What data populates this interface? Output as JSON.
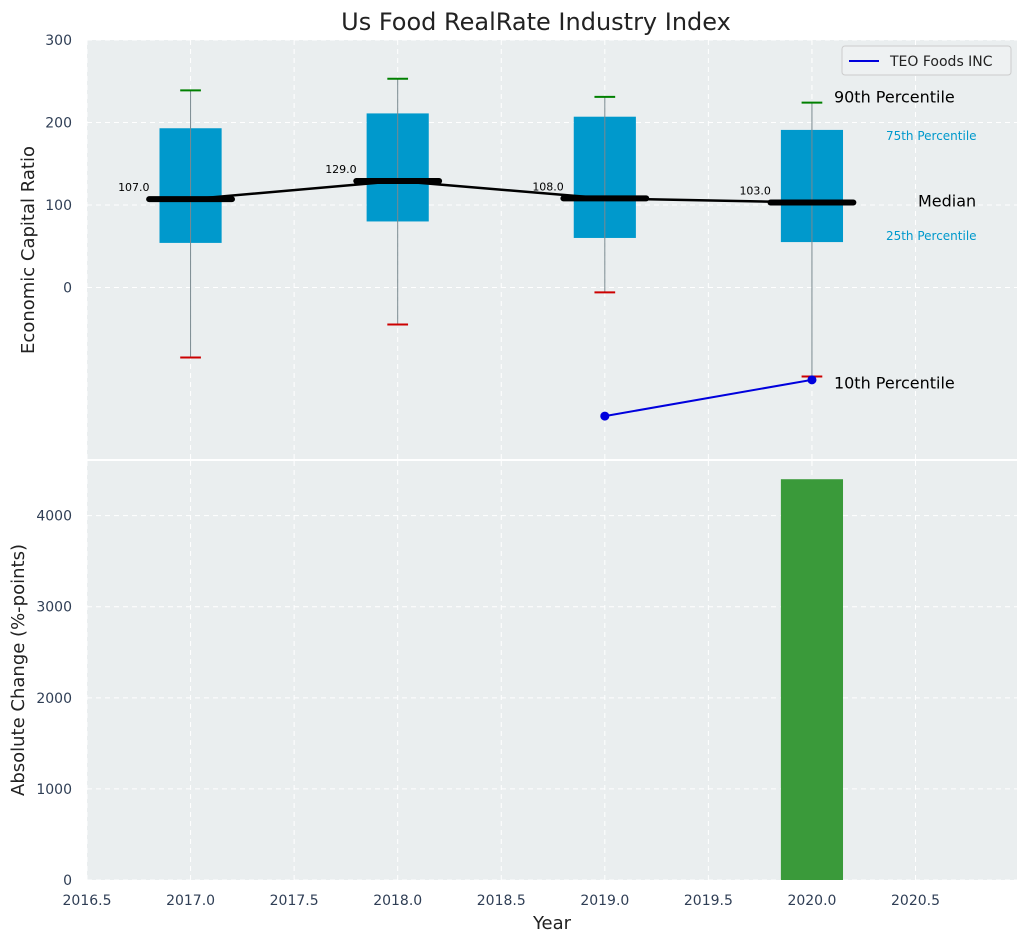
{
  "chart_data": {
    "title": "Us Food RealRate Industry Index",
    "xlabel": "Year",
    "x_ticks": [
      "2016.5",
      "2017.0",
      "2017.5",
      "2018.0",
      "2018.5",
      "2019.0",
      "2019.5",
      "2020.0",
      "2020.5"
    ],
    "x_tick_values": [
      2016.5,
      2017.0,
      2017.5,
      2018.0,
      2018.5,
      2019.0,
      2019.5,
      2020.0,
      2020.5
    ],
    "xlim": [
      2016.5,
      2020.99
    ],
    "colors": {
      "box": "#0099cc",
      "median": "#000000",
      "whisker_top": "#008000",
      "whisker_bottom": "#cc0000",
      "company": "#0000dd",
      "bar": "#3a9a3a",
      "plot_bg": "#eaeeef"
    },
    "panels": [
      {
        "type": "box",
        "ylabel": "Economic Capital Ratio",
        "ylim": [
          -208,
          300
        ],
        "y_ticks": [
          "300",
          "200",
          "100",
          "0"
        ],
        "y_tick_values": [
          300,
          200,
          100,
          0
        ],
        "boxes": [
          {
            "year": 2017,
            "p10": -85,
            "p25": 54,
            "median": 107,
            "p75": 193,
            "p90": 239,
            "label": "107.0"
          },
          {
            "year": 2018,
            "p10": -45,
            "p25": 80,
            "median": 129,
            "p75": 211,
            "p90": 253,
            "label": "129.0"
          },
          {
            "year": 2019,
            "p10": -6,
            "p25": 60,
            "median": 108,
            "p75": 207,
            "p90": 231,
            "label": "108.0"
          },
          {
            "year": 2020,
            "p10": -108,
            "p25": 55,
            "median": 103,
            "p75": 191,
            "p90": 224,
            "label": "103.0"
          }
        ],
        "company_series": {
          "name": "TEO Foods INC",
          "points": [
            {
              "x": 2019,
              "y": -156
            },
            {
              "x": 2020,
              "y": -112
            }
          ]
        },
        "annotations": {
          "p90": "90th Percentile",
          "p75": "75th Percentile",
          "median": "Median",
          "p25": "25th Percentile",
          "p10": "10th Percentile"
        },
        "legend": {
          "position": "top-right",
          "entries": [
            "TEO Foods INC"
          ]
        }
      },
      {
        "type": "bar",
        "ylabel": "Absolute Change (%-points)",
        "ylim": [
          0,
          4600
        ],
        "y_ticks": [
          "4000",
          "3000",
          "2000",
          "1000",
          "0"
        ],
        "y_tick_values": [
          4000,
          3000,
          2000,
          1000,
          0
        ],
        "bars": [
          {
            "x": 2020,
            "value": 4400
          }
        ]
      }
    ]
  }
}
